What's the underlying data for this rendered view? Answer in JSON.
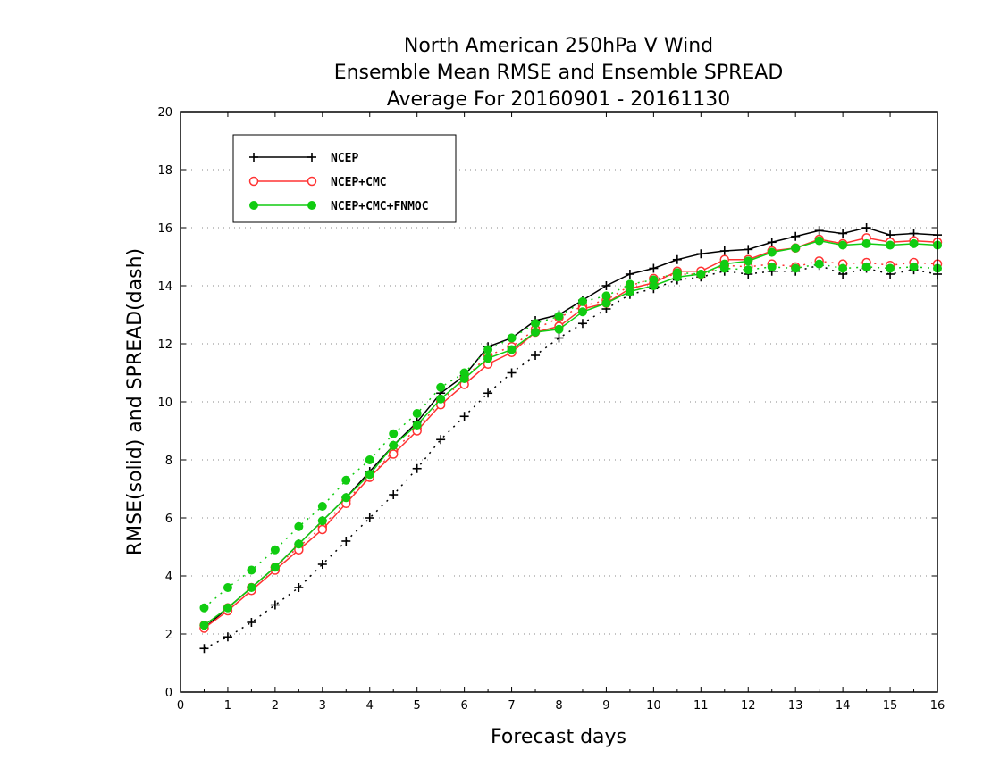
{
  "chart_data": {
    "type": "line",
    "title": [
      "North American 250hPa V Wind",
      "Ensemble Mean RMSE and Ensemble SPREAD",
      "Average For 20160901 - 20161130"
    ],
    "xlabel": "Forecast days",
    "ylabel": "RMSE(solid) and SPREAD(dash)",
    "xlim": [
      0,
      16
    ],
    "ylim": [
      0,
      20
    ],
    "xticks": [
      0,
      1,
      2,
      3,
      4,
      5,
      6,
      7,
      8,
      9,
      10,
      11,
      12,
      13,
      14,
      15,
      16
    ],
    "yticks": [
      0,
      2,
      4,
      6,
      8,
      10,
      12,
      14,
      16,
      18,
      20
    ],
    "grid": "horizontal dotted",
    "legend_position": "top-left",
    "x": [
      0.5,
      1,
      1.5,
      2,
      2.5,
      3,
      3.5,
      4,
      4.5,
      5,
      5.5,
      6,
      6.5,
      7,
      7.5,
      8,
      8.5,
      9,
      9.5,
      10,
      10.5,
      11,
      11.5,
      12,
      12.5,
      13,
      13.5,
      14,
      14.5,
      15,
      15.5,
      16
    ],
    "series": [
      {
        "name": "NCEP",
        "color": "#000000",
        "marker": "plus",
        "rmse": [
          2.2,
          2.9,
          3.6,
          4.3,
          5.1,
          5.9,
          6.7,
          7.6,
          8.5,
          9.3,
          10.3,
          10.9,
          11.9,
          12.2,
          12.8,
          13.0,
          13.5,
          14.0,
          14.4,
          14.6,
          14.9,
          15.1,
          15.2,
          15.25,
          15.5,
          15.7,
          15.9,
          15.8,
          16.0,
          15.75,
          15.8,
          15.75
        ],
        "spread": [
          1.5,
          1.9,
          2.4,
          3.0,
          3.6,
          4.4,
          5.2,
          6.0,
          6.8,
          7.7,
          8.7,
          9.5,
          10.3,
          11.0,
          11.6,
          12.2,
          12.7,
          13.2,
          13.7,
          13.9,
          14.2,
          14.3,
          14.5,
          14.4,
          14.5,
          14.5,
          14.7,
          14.4,
          14.6,
          14.4,
          14.55,
          14.4
        ]
      },
      {
        "name": "NCEP+CMC",
        "color": "#ff3333",
        "marker": "open-circle",
        "rmse": [
          2.2,
          2.8,
          3.5,
          4.2,
          4.9,
          5.6,
          6.5,
          7.4,
          8.2,
          9.0,
          9.9,
          10.6,
          11.3,
          11.7,
          12.4,
          12.6,
          13.2,
          13.4,
          13.9,
          14.1,
          14.5,
          14.5,
          14.9,
          14.9,
          15.2,
          15.3,
          15.6,
          15.45,
          15.65,
          15.5,
          15.55,
          15.5
        ],
        "spread": [
          2.3,
          2.9,
          3.6,
          4.3,
          5.0,
          5.7,
          6.6,
          7.4,
          8.3,
          9.1,
          10.0,
          10.8,
          11.6,
          11.9,
          12.5,
          12.9,
          13.3,
          13.5,
          14.0,
          14.25,
          14.4,
          14.4,
          14.7,
          14.65,
          14.75,
          14.65,
          14.85,
          14.75,
          14.8,
          14.7,
          14.8,
          14.75
        ]
      },
      {
        "name": "NCEP+CMC+FNMOC",
        "color": "#11cc11",
        "marker": "filled-circle",
        "rmse": [
          2.3,
          2.9,
          3.6,
          4.3,
          5.1,
          5.9,
          6.7,
          7.5,
          8.5,
          9.2,
          10.1,
          10.8,
          11.5,
          11.8,
          12.4,
          12.5,
          13.1,
          13.4,
          13.8,
          14.0,
          14.3,
          14.4,
          14.75,
          14.85,
          15.15,
          15.3,
          15.55,
          15.4,
          15.45,
          15.4,
          15.45,
          15.4
        ],
        "spread": [
          2.9,
          3.6,
          4.2,
          4.9,
          5.7,
          6.4,
          7.3,
          8.0,
          8.9,
          9.6,
          10.5,
          11.0,
          11.8,
          12.2,
          12.7,
          12.95,
          13.45,
          13.65,
          14.05,
          14.2,
          14.45,
          14.4,
          14.6,
          14.55,
          14.65,
          14.6,
          14.75,
          14.6,
          14.65,
          14.6,
          14.65,
          14.6
        ]
      }
    ]
  }
}
